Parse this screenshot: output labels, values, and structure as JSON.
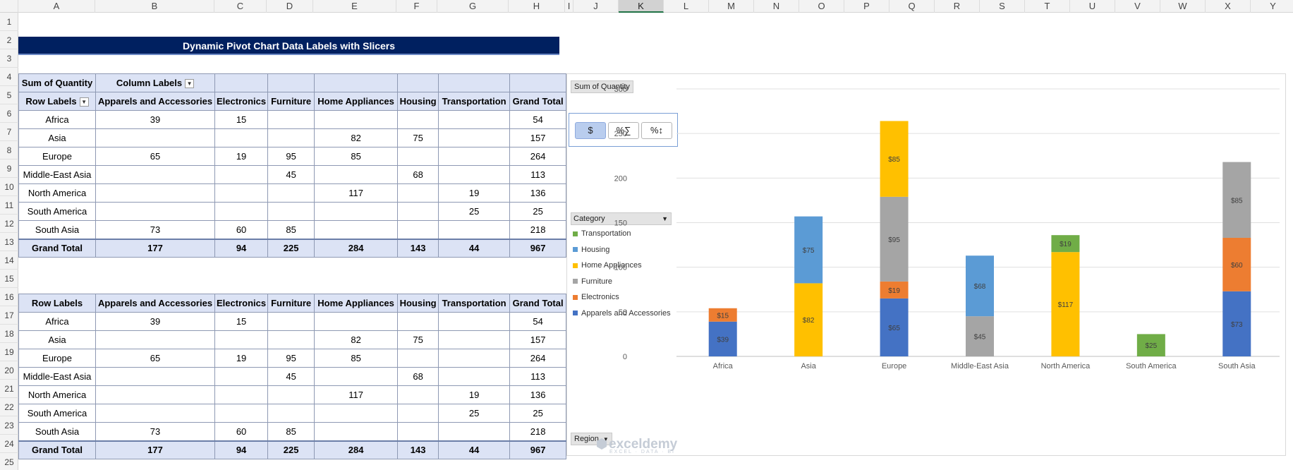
{
  "columns": [
    "A",
    "B",
    "C",
    "D",
    "E",
    "F",
    "G",
    "H",
    "I",
    "J",
    "K",
    "L",
    "M",
    "N",
    "O",
    "P",
    "Q",
    "R",
    "S",
    "T",
    "U",
    "V",
    "W",
    "X",
    "Y"
  ],
  "rows": [
    "1",
    "2",
    "3",
    "4",
    "5",
    "6",
    "7",
    "8",
    "9",
    "10",
    "11",
    "12",
    "13",
    "14",
    "15",
    "16",
    "17",
    "18",
    "19",
    "20",
    "21",
    "22",
    "23",
    "24",
    "25"
  ],
  "title": "Dynamic Pivot Chart Data Labels with Slicers",
  "pivot1": {
    "corner": "Sum of Quantity",
    "column_labels": "Column Labels",
    "row_labels": "Row Labels",
    "headers": [
      "Apparels and Accessories",
      "Electronics",
      "Furniture",
      "Home Appliances",
      "Housing",
      "Transportation",
      "Grand Total"
    ],
    "rows": [
      [
        "Africa",
        "39",
        "15",
        "",
        "",
        "",
        "",
        "54"
      ],
      [
        "Asia",
        "",
        "",
        "",
        "82",
        "75",
        "",
        "157"
      ],
      [
        "Europe",
        "65",
        "19",
        "95",
        "85",
        "",
        "",
        "264"
      ],
      [
        "Middle-East Asia",
        "",
        "",
        "45",
        "",
        "68",
        "",
        "113"
      ],
      [
        "North America",
        "",
        "",
        "",
        "117",
        "",
        "19",
        "136"
      ],
      [
        "South America",
        "",
        "",
        "",
        "",
        "",
        "25",
        "25"
      ],
      [
        "South Asia",
        "73",
        "60",
        "85",
        "",
        "",
        "",
        "218"
      ]
    ],
    "total": [
      "Grand Total",
      "177",
      "94",
      "225",
      "284",
      "143",
      "44",
      "967"
    ]
  },
  "pivot2": {
    "row_labels": "Row Labels",
    "headers": [
      "Apparels and Accessories",
      "Electronics",
      "Furniture",
      "Home Appliances",
      "Housing",
      "Transportation",
      "Grand Total"
    ],
    "rows": [
      [
        "Africa",
        "39",
        "15",
        "",
        "",
        "",
        "",
        "54"
      ],
      [
        "Asia",
        "",
        "",
        "",
        "82",
        "75",
        "",
        "157"
      ],
      [
        "Europe",
        "65",
        "19",
        "95",
        "85",
        "",
        "",
        "264"
      ],
      [
        "Middle-East Asia",
        "",
        "",
        "45",
        "",
        "68",
        "",
        "113"
      ],
      [
        "North America",
        "",
        "",
        "",
        "117",
        "",
        "19",
        "136"
      ],
      [
        "South America",
        "",
        "",
        "",
        "",
        "",
        "25",
        "25"
      ],
      [
        "South Asia",
        "73",
        "60",
        "85",
        "",
        "",
        "",
        "218"
      ]
    ],
    "total": [
      "Grand Total",
      "177",
      "94",
      "225",
      "284",
      "143",
      "44",
      "967"
    ]
  },
  "chart_panel": {
    "value_field": "Sum of Quantity",
    "axis_field": "Region",
    "legend_field": "Category",
    "slicer_buttons": [
      {
        "label": "$",
        "active": true
      },
      {
        "label": "%∑",
        "active": false
      },
      {
        "label": "%↕",
        "active": false
      }
    ],
    "watermark": "exceldemy",
    "watermark_sub": "EXCEL · DATA · BI"
  },
  "chart_data": {
    "type": "bar",
    "stacked": true,
    "categories": [
      "Africa",
      "Asia",
      "Europe",
      "Middle-East Asia",
      "North America",
      "South America",
      "South Asia"
    ],
    "series": [
      {
        "name": "Apparels and Accessories",
        "color": "#4472c4",
        "values": [
          39,
          0,
          65,
          0,
          0,
          0,
          73
        ]
      },
      {
        "name": "Electronics",
        "color": "#ed7d31",
        "values": [
          15,
          0,
          19,
          0,
          0,
          0,
          60
        ]
      },
      {
        "name": "Furniture",
        "color": "#a5a5a5",
        "values": [
          0,
          0,
          95,
          45,
          0,
          0,
          85
        ]
      },
      {
        "name": "Home Appliances",
        "color": "#ffc000",
        "values": [
          0,
          82,
          85,
          0,
          117,
          0,
          0
        ]
      },
      {
        "name": "Housing",
        "color": "#5b9bd5",
        "values": [
          0,
          75,
          0,
          68,
          0,
          0,
          0
        ]
      },
      {
        "name": "Transportation",
        "color": "#70ad47",
        "values": [
          0,
          0,
          0,
          0,
          19,
          25,
          0
        ]
      }
    ],
    "legend_order": [
      "Transportation",
      "Housing",
      "Home Appliances",
      "Furniture",
      "Electronics",
      "Apparels and Accessories"
    ],
    "label_prefix": "$",
    "yticks": [
      "0",
      "50",
      "100",
      "150",
      "200",
      "250",
      "300"
    ],
    "ylim": [
      0,
      300
    ],
    "grid": true,
    "legend_position": "left"
  }
}
